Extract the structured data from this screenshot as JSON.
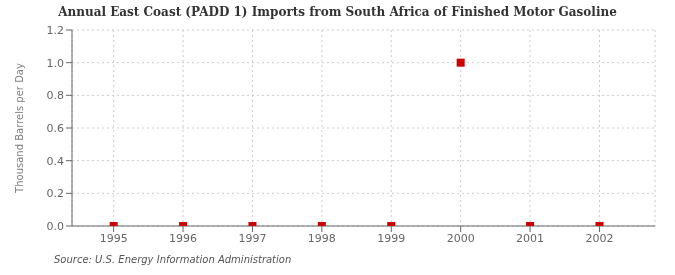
{
  "chart_data": {
    "type": "scatter",
    "title": "Annual East Coast (PADD 1) Imports from South Africa of Finished Motor Gasoline",
    "ylabel": "Thousand Barrels per Day",
    "annotations": [
      "Source: U.S. Energy Information Administration"
    ],
    "x": [
      1995,
      1996,
      1997,
      1998,
      1999,
      2000,
      2001,
      2002
    ],
    "values": [
      0,
      0,
      0,
      0,
      0,
      1,
      0,
      0
    ],
    "color": "#cc0000",
    "marker": "square",
    "xlim": [
      1994.4,
      2002.8
    ],
    "xticks": [
      1995,
      1996,
      1997,
      1998,
      1999,
      2000,
      2001,
      2002
    ],
    "ylim": [
      0,
      1.2
    ],
    "yticks": [
      {
        "value": 0,
        "label": "0.0"
      },
      0.2,
      0.4,
      0.6,
      0.8,
      {
        "value": 1,
        "label": "1.0"
      },
      1.2
    ],
    "grid": true
  }
}
